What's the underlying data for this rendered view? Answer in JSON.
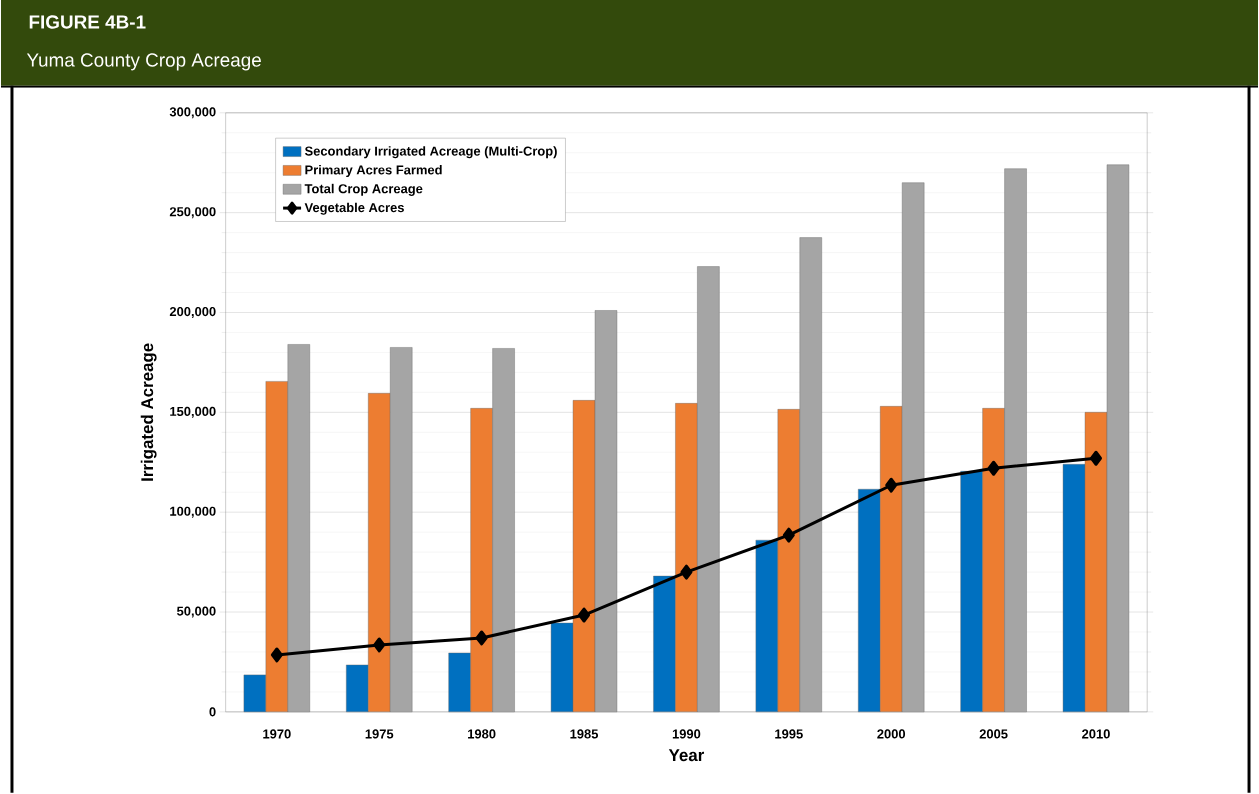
{
  "chart_data": {
    "type": "bar",
    "title": "FIGURE 4B-1",
    "subtitle": "Yuma County Crop Acreage",
    "xlabel": "Year",
    "ylabel": "Irrigated Acreage",
    "categories": [
      "1970",
      "1975",
      "1980",
      "1985",
      "1990",
      "1995",
      "2000",
      "2005",
      "2010"
    ],
    "series": [
      {
        "name": "Secondary Irrigated Acreage (Multi-Crop)",
        "color": "#0070c0",
        "values": [
          18500,
          23500,
          29500,
          44500,
          68000,
          86000,
          111500,
          120500,
          124000
        ]
      },
      {
        "name": "Primary Acres Farmed",
        "color": "#ed7d31",
        "values": [
          165500,
          159500,
          152000,
          156000,
          154500,
          151500,
          153000,
          152000,
          150000
        ]
      },
      {
        "name": "Total Crop Acreage",
        "color": "#a5a5a5",
        "values": [
          184000,
          182500,
          182000,
          201000,
          223000,
          237500,
          265000,
          272000,
          274000
        ]
      },
      {
        "name": "Vegetable Acres",
        "type": "line",
        "color": "#000000",
        "values": [
          28500,
          33500,
          37000,
          48500,
          70000,
          88500,
          113500,
          122000,
          127000
        ]
      }
    ],
    "ylim": [
      0,
      300000
    ],
    "yticks": [
      {
        "value": 0,
        "label": "0"
      },
      {
        "value": 50000,
        "label": "50,000"
      },
      {
        "value": 100000,
        "label": "100,000"
      },
      {
        "value": 150000,
        "label": "150,000"
      },
      {
        "value": 200000,
        "label": "200,000"
      },
      {
        "value": 250000,
        "label": "250,000"
      },
      {
        "value": 300000,
        "label": "300,000"
      }
    ],
    "grid": "y",
    "legend": "top left",
    "marker": "diamond",
    "line_style": "solid"
  }
}
